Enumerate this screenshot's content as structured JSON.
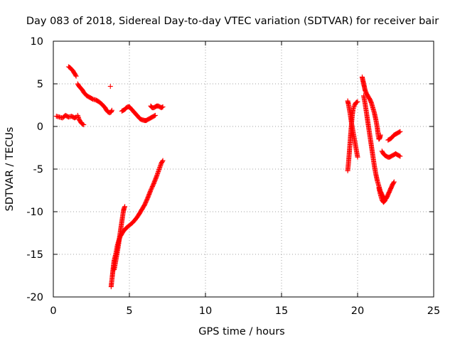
{
  "chart_data": {
    "type": "scatter",
    "title": "Day 083 of 2018, Sidereal Day-to-day VTEC variation (SDTVAR) for receiver bair",
    "xlabel": "GPS time / hours",
    "ylabel": "SDTVAR / TECUs",
    "xlim": [
      0,
      25
    ],
    "ylim": [
      -20,
      10
    ],
    "xticks": [
      0,
      5,
      10,
      15,
      20,
      25
    ],
    "yticks": [
      -20,
      -15,
      -10,
      -5,
      0,
      5,
      10
    ],
    "grid": true,
    "marker": "+",
    "series": [
      {
        "color": "#ff0000",
        "segments": [
          [
            [
              0.2,
              1.2
            ],
            [
              0.4,
              1.1
            ],
            [
              0.6,
              1.0
            ],
            [
              0.8,
              1.3
            ],
            [
              1.0,
              1.1
            ],
            [
              1.2,
              1.2
            ],
            [
              1.4,
              1.0
            ],
            [
              1.5,
              1.1
            ]
          ],
          [
            [
              1.6,
              1.3
            ],
            [
              1.7,
              0.8
            ],
            [
              1.8,
              0.5
            ],
            [
              1.9,
              0.3
            ],
            [
              2.0,
              0.2
            ]
          ],
          [
            [
              1.0,
              7.0
            ],
            [
              1.1,
              6.9
            ],
            [
              1.2,
              6.7
            ],
            [
              1.3,
              6.5
            ],
            [
              1.4,
              6.2
            ],
            [
              1.5,
              5.9
            ]
          ],
          [
            [
              1.6,
              5.0
            ],
            [
              1.7,
              4.7
            ],
            [
              1.8,
              4.5
            ],
            [
              1.9,
              4.3
            ],
            [
              2.0,
              4.0
            ],
            [
              2.2,
              3.6
            ],
            [
              2.4,
              3.4
            ],
            [
              2.6,
              3.2
            ],
            [
              2.8,
              3.1
            ],
            [
              3.0,
              2.9
            ],
            [
              3.2,
              2.6
            ],
            [
              3.4,
              2.2
            ],
            [
              3.5,
              1.9
            ],
            [
              3.6,
              1.7
            ],
            [
              3.7,
              1.6
            ],
            [
              3.8,
              1.7
            ],
            [
              3.85,
              1.9
            ]
          ],
          [
            [
              3.75,
              4.7
            ]
          ],
          [
            [
              4.5,
              1.8
            ],
            [
              4.6,
              1.9
            ],
            [
              4.7,
              2.0
            ],
            [
              4.8,
              2.2
            ],
            [
              4.9,
              2.3
            ],
            [
              5.0,
              2.3
            ],
            [
              5.1,
              2.1
            ],
            [
              5.2,
              1.9
            ],
            [
              5.3,
              1.7
            ],
            [
              5.4,
              1.5
            ],
            [
              5.5,
              1.3
            ],
            [
              5.6,
              1.1
            ],
            [
              5.7,
              0.9
            ],
            [
              5.8,
              0.8
            ],
            [
              5.9,
              0.75
            ],
            [
              6.0,
              0.7
            ],
            [
              6.1,
              0.7
            ],
            [
              6.2,
              0.8
            ],
            [
              6.3,
              0.9
            ],
            [
              6.4,
              1.0
            ],
            [
              6.5,
              1.1
            ],
            [
              6.6,
              1.2
            ],
            [
              6.7,
              1.3
            ]
          ],
          [
            [
              6.4,
              2.4
            ],
            [
              6.5,
              2.2
            ],
            [
              6.6,
              2.2
            ],
            [
              6.7,
              2.3
            ],
            [
              6.8,
              2.4
            ],
            [
              6.9,
              2.4
            ],
            [
              7.0,
              2.3
            ],
            [
              7.1,
              2.2
            ],
            [
              7.2,
              2.3
            ]
          ],
          [
            [
              3.8,
              -18.8
            ],
            [
              3.85,
              -18.0
            ],
            [
              3.9,
              -17.2
            ],
            [
              3.95,
              -16.4
            ],
            [
              4.0,
              -15.7
            ],
            [
              4.1,
              -15.0
            ],
            [
              4.15,
              -14.5
            ],
            [
              4.2,
              -14.0
            ],
            [
              4.3,
              -13.4
            ],
            [
              4.4,
              -12.9
            ],
            [
              4.5,
              -12.6
            ],
            [
              4.6,
              -12.3
            ],
            [
              4.7,
              -12.1
            ],
            [
              4.8,
              -11.9
            ],
            [
              5.0,
              -11.6
            ],
            [
              5.2,
              -11.3
            ],
            [
              5.4,
              -10.9
            ],
            [
              5.6,
              -10.4
            ],
            [
              5.8,
              -9.8
            ],
            [
              6.0,
              -9.2
            ],
            [
              6.2,
              -8.4
            ],
            [
              6.4,
              -7.5
            ],
            [
              6.6,
              -6.7
            ],
            [
              6.8,
              -5.8
            ],
            [
              7.0,
              -4.8
            ],
            [
              7.1,
              -4.3
            ],
            [
              7.2,
              -4.0
            ]
          ],
          [
            [
              4.0,
              -16.8
            ],
            [
              4.1,
              -15.8
            ],
            [
              4.2,
              -14.8
            ],
            [
              4.3,
              -13.7
            ],
            [
              4.35,
              -13.0
            ],
            [
              4.4,
              -12.4
            ],
            [
              4.45,
              -11.8
            ],
            [
              4.5,
              -11.2
            ],
            [
              4.55,
              -10.6
            ],
            [
              4.6,
              -10.0
            ],
            [
              4.65,
              -9.6
            ],
            [
              4.7,
              -9.4
            ]
          ],
          [
            [
              19.35,
              -5.2
            ],
            [
              19.4,
              -4.3
            ],
            [
              19.45,
              -3.2
            ],
            [
              19.5,
              -2.0
            ],
            [
              19.55,
              -0.8
            ],
            [
              19.6,
              0.3
            ],
            [
              19.65,
              1.3
            ],
            [
              19.7,
              2.0
            ],
            [
              19.8,
              2.5
            ],
            [
              19.9,
              2.8
            ],
            [
              20.0,
              2.9
            ]
          ],
          [
            [
              19.35,
              3.0
            ],
            [
              19.4,
              2.6
            ],
            [
              19.5,
              1.6
            ],
            [
              19.6,
              0.4
            ],
            [
              19.7,
              -0.6
            ],
            [
              19.8,
              -1.6
            ],
            [
              19.9,
              -2.6
            ],
            [
              20.0,
              -3.6
            ]
          ],
          [
            [
              20.3,
              5.8
            ],
            [
              20.35,
              5.4
            ],
            [
              20.4,
              5.0
            ],
            [
              20.45,
              4.6
            ],
            [
              20.5,
              4.2
            ],
            [
              20.6,
              3.8
            ],
            [
              20.7,
              3.5
            ],
            [
              20.8,
              3.2
            ],
            [
              20.9,
              2.8
            ],
            [
              21.0,
              2.2
            ],
            [
              21.1,
              1.6
            ],
            [
              21.2,
              0.8
            ],
            [
              21.3,
              -0.2
            ],
            [
              21.35,
              -1.0
            ],
            [
              21.4,
              -1.5
            ],
            [
              21.45,
              -1.4
            ],
            [
              21.5,
              -1.0
            ]
          ],
          [
            [
              20.4,
              3.6
            ],
            [
              20.5,
              2.6
            ],
            [
              20.6,
              1.4
            ],
            [
              20.7,
              0.2
            ],
            [
              20.8,
              -1.0
            ],
            [
              20.9,
              -2.2
            ],
            [
              21.0,
              -3.4
            ],
            [
              21.1,
              -4.6
            ],
            [
              21.2,
              -5.6
            ],
            [
              21.3,
              -6.4
            ],
            [
              21.4,
              -7.0
            ],
            [
              21.5,
              -7.6
            ],
            [
              21.6,
              -8.0
            ],
            [
              21.7,
              -8.3
            ],
            [
              21.8,
              -8.6
            ],
            [
              21.9,
              -8.4
            ],
            [
              22.0,
              -8.0
            ],
            [
              22.1,
              -7.6
            ],
            [
              22.2,
              -7.2
            ],
            [
              22.3,
              -6.8
            ],
            [
              22.4,
              -6.5
            ]
          ],
          [
            [
              21.4,
              -7.2
            ],
            [
              21.5,
              -8.0
            ],
            [
              21.6,
              -8.6
            ],
            [
              21.7,
              -8.9
            ],
            [
              21.8,
              -8.7
            ]
          ],
          [
            [
              21.6,
              -2.9
            ],
            [
              21.7,
              -3.2
            ],
            [
              21.8,
              -3.4
            ],
            [
              21.9,
              -3.5
            ],
            [
              22.0,
              -3.6
            ],
            [
              22.1,
              -3.6
            ],
            [
              22.2,
              -3.5
            ],
            [
              22.3,
              -3.4
            ],
            [
              22.4,
              -3.3
            ],
            [
              22.5,
              -3.2
            ],
            [
              22.6,
              -3.3
            ],
            [
              22.7,
              -3.4
            ],
            [
              22.8,
              -3.5
            ]
          ],
          [
            [
              22.0,
              -1.6
            ],
            [
              22.1,
              -1.5
            ],
            [
              22.2,
              -1.4
            ],
            [
              22.3,
              -1.2
            ],
            [
              22.4,
              -1.0
            ],
            [
              22.5,
              -0.9
            ],
            [
              22.6,
              -0.8
            ],
            [
              22.7,
              -0.7
            ],
            [
              22.8,
              -0.6
            ]
          ]
        ]
      }
    ]
  }
}
